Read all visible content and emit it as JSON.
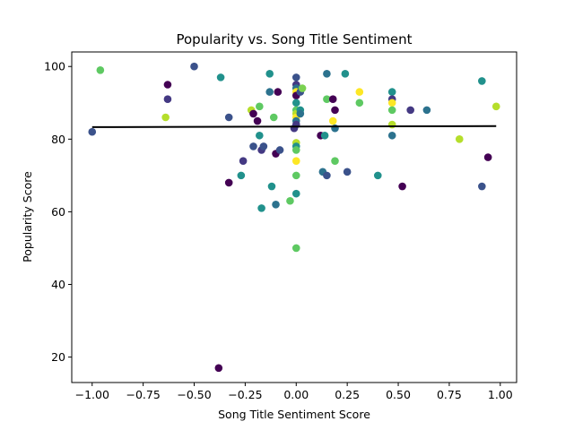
{
  "chart_data": {
    "type": "scatter",
    "title": "Popularity vs. Song Title Sentiment",
    "xlabel": "Song Title Sentiment Score",
    "ylabel": "Popularity Score",
    "xlim": [
      -1.1,
      1.08
    ],
    "ylim": [
      13,
      104
    ],
    "xticks": [
      -1.0,
      -0.75,
      -0.5,
      -0.25,
      0.0,
      0.25,
      0.5,
      0.75,
      1.0
    ],
    "xtick_labels": [
      "−1.00",
      "−0.75",
      "−0.50",
      "−0.25",
      "0.00",
      "0.25",
      "0.50",
      "0.75",
      "1.00"
    ],
    "yticks": [
      20,
      40,
      60,
      80,
      100
    ],
    "ytick_labels": [
      "20",
      "40",
      "60",
      "80",
      "100"
    ],
    "grid": false,
    "colormap": "viridis",
    "trendline": {
      "x": [
        -1.0,
        0.98
      ],
      "y": [
        83.3,
        83.6
      ],
      "color": "#000000"
    },
    "points": [
      {
        "x": -1.0,
        "y": 82,
        "color": "#3b528b"
      },
      {
        "x": -0.96,
        "y": 99,
        "color": "#5ec962"
      },
      {
        "x": -0.63,
        "y": 95,
        "color": "#440154"
      },
      {
        "x": -0.63,
        "y": 91,
        "color": "#443983"
      },
      {
        "x": -0.64,
        "y": 86,
        "color": "#b5de2b"
      },
      {
        "x": -0.5,
        "y": 100,
        "color": "#3b528b"
      },
      {
        "x": -0.37,
        "y": 97,
        "color": "#21918c"
      },
      {
        "x": -0.38,
        "y": 17,
        "color": "#440154"
      },
      {
        "x": -0.33,
        "y": 86,
        "color": "#3b528b"
      },
      {
        "x": -0.33,
        "y": 68,
        "color": "#440154"
      },
      {
        "x": -0.27,
        "y": 70,
        "color": "#21918c"
      },
      {
        "x": -0.26,
        "y": 74,
        "color": "#443983"
      },
      {
        "x": -0.22,
        "y": 88,
        "color": "#b5de2b"
      },
      {
        "x": -0.21,
        "y": 87,
        "color": "#440154"
      },
      {
        "x": -0.21,
        "y": 78,
        "color": "#3b528b"
      },
      {
        "x": -0.19,
        "y": 85,
        "color": "#440154"
      },
      {
        "x": -0.18,
        "y": 89,
        "color": "#5ec962"
      },
      {
        "x": -0.18,
        "y": 81,
        "color": "#21918c"
      },
      {
        "x": -0.17,
        "y": 77,
        "color": "#443983"
      },
      {
        "x": -0.16,
        "y": 78,
        "color": "#3b528b"
      },
      {
        "x": -0.17,
        "y": 61,
        "color": "#21918c"
      },
      {
        "x": -0.13,
        "y": 98,
        "color": "#21918c"
      },
      {
        "x": -0.13,
        "y": 93,
        "color": "#2c728e"
      },
      {
        "x": -0.11,
        "y": 86,
        "color": "#5ec962"
      },
      {
        "x": -0.12,
        "y": 67,
        "color": "#21918c"
      },
      {
        "x": -0.1,
        "y": 76,
        "color": "#440154"
      },
      {
        "x": -0.1,
        "y": 62,
        "color": "#2c728e"
      },
      {
        "x": -0.09,
        "y": 93,
        "color": "#440154"
      },
      {
        "x": -0.08,
        "y": 77,
        "color": "#3b528b"
      },
      {
        "x": -0.03,
        "y": 63,
        "color": "#5ec962"
      },
      {
        "x": -0.01,
        "y": 83,
        "color": "#443983"
      },
      {
        "x": 0.0,
        "y": 97,
        "color": "#3b528b"
      },
      {
        "x": 0.0,
        "y": 95,
        "color": "#443983"
      },
      {
        "x": 0.0,
        "y": 94,
        "color": "#2c728e"
      },
      {
        "x": 0.0,
        "y": 93,
        "color": "#fde725"
      },
      {
        "x": 0.0,
        "y": 92,
        "color": "#440154"
      },
      {
        "x": 0.0,
        "y": 90,
        "color": "#21918c"
      },
      {
        "x": 0.0,
        "y": 88,
        "color": "#5ec962"
      },
      {
        "x": 0.0,
        "y": 87,
        "color": "#b5de2b"
      },
      {
        "x": 0.0,
        "y": 86,
        "color": "#fde725"
      },
      {
        "x": 0.0,
        "y": 85,
        "color": "#2c728e"
      },
      {
        "x": 0.0,
        "y": 84,
        "color": "#443983"
      },
      {
        "x": 0.0,
        "y": 79,
        "color": "#b5de2b"
      },
      {
        "x": 0.0,
        "y": 78,
        "color": "#21918c"
      },
      {
        "x": 0.0,
        "y": 77,
        "color": "#5ec962"
      },
      {
        "x": 0.0,
        "y": 74,
        "color": "#fde725"
      },
      {
        "x": 0.0,
        "y": 70,
        "color": "#5ec962"
      },
      {
        "x": 0.0,
        "y": 65,
        "color": "#21918c"
      },
      {
        "x": 0.0,
        "y": 50,
        "color": "#5ec962"
      },
      {
        "x": 0.02,
        "y": 93,
        "color": "#3b528b"
      },
      {
        "x": 0.03,
        "y": 94,
        "color": "#7ad151"
      },
      {
        "x": 0.02,
        "y": 88,
        "color": "#21918c"
      },
      {
        "x": 0.02,
        "y": 87,
        "color": "#2c728e"
      },
      {
        "x": 0.12,
        "y": 81,
        "color": "#440154"
      },
      {
        "x": 0.13,
        "y": 71,
        "color": "#2c728e"
      },
      {
        "x": 0.14,
        "y": 81,
        "color": "#21918c"
      },
      {
        "x": 0.15,
        "y": 98,
        "color": "#2c728e"
      },
      {
        "x": 0.15,
        "y": 91,
        "color": "#5ec962"
      },
      {
        "x": 0.15,
        "y": 70,
        "color": "#3b528b"
      },
      {
        "x": 0.18,
        "y": 91,
        "color": "#440154"
      },
      {
        "x": 0.18,
        "y": 85,
        "color": "#fde725"
      },
      {
        "x": 0.19,
        "y": 88,
        "color": "#440154"
      },
      {
        "x": 0.19,
        "y": 83,
        "color": "#2c728e"
      },
      {
        "x": 0.19,
        "y": 74,
        "color": "#5ec962"
      },
      {
        "x": 0.24,
        "y": 98,
        "color": "#21918c"
      },
      {
        "x": 0.25,
        "y": 71,
        "color": "#3b528b"
      },
      {
        "x": 0.31,
        "y": 93,
        "color": "#fde725"
      },
      {
        "x": 0.31,
        "y": 90,
        "color": "#5ec962"
      },
      {
        "x": 0.4,
        "y": 70,
        "color": "#21918c"
      },
      {
        "x": 0.47,
        "y": 93,
        "color": "#21918c"
      },
      {
        "x": 0.47,
        "y": 91,
        "color": "#443983"
      },
      {
        "x": 0.47,
        "y": 90,
        "color": "#fde725"
      },
      {
        "x": 0.47,
        "y": 88,
        "color": "#5ec962"
      },
      {
        "x": 0.47,
        "y": 84,
        "color": "#b5de2b"
      },
      {
        "x": 0.47,
        "y": 81,
        "color": "#2c728e"
      },
      {
        "x": 0.52,
        "y": 67,
        "color": "#440154"
      },
      {
        "x": 0.56,
        "y": 88,
        "color": "#443983"
      },
      {
        "x": 0.64,
        "y": 88,
        "color": "#2c728e"
      },
      {
        "x": 0.8,
        "y": 80,
        "color": "#b5de2b"
      },
      {
        "x": 0.91,
        "y": 96,
        "color": "#21918c"
      },
      {
        "x": 0.91,
        "y": 67,
        "color": "#3b528b"
      },
      {
        "x": 0.94,
        "y": 75,
        "color": "#440154"
      },
      {
        "x": 0.98,
        "y": 89,
        "color": "#b5de2b"
      }
    ]
  }
}
